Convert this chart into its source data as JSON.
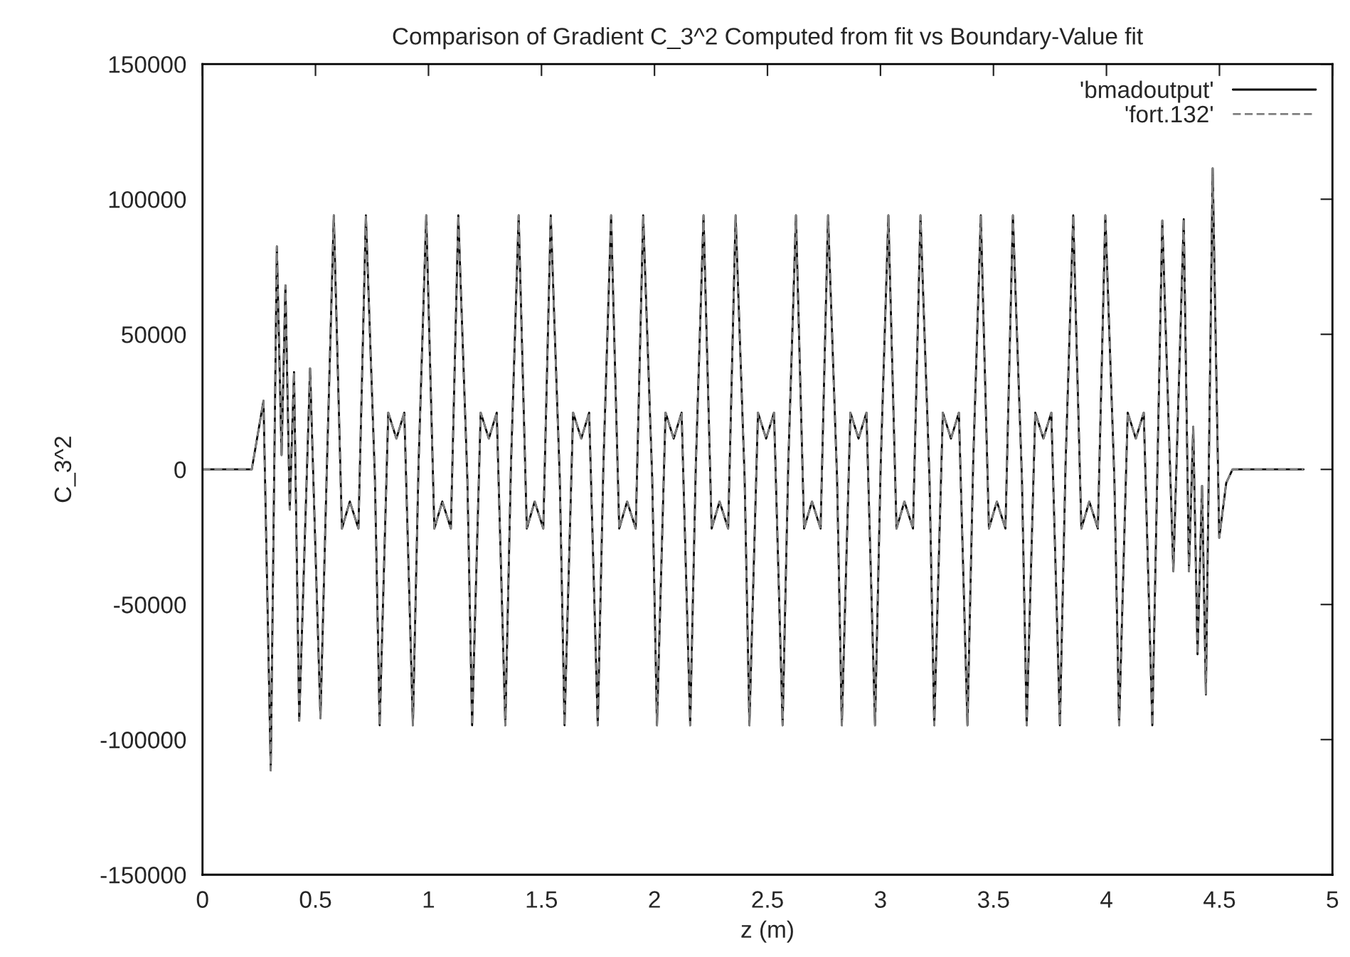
{
  "chart_data": {
    "type": "line",
    "title": "Comparison of Gradient C_3^2 Computed from fit vs Boundary-Value fit",
    "xlabel": "z (m)",
    "ylabel": "C_3^2",
    "x": [
      0,
      0.218,
      0.27,
      0.302,
      0.329,
      0.35,
      0.367,
      0.386,
      0.405,
      0.428,
      0.476,
      0.522,
      0.549,
      0.581,
      0.617,
      0.652,
      0.69,
      0.723,
      0.763,
      0.784,
      0.822,
      0.858,
      0.893,
      0.931,
      0.956,
      0.99,
      1.026,
      1.061,
      1.099,
      1.132,
      1.172,
      1.193,
      1.231,
      1.267,
      1.302,
      1.34,
      1.365,
      1.399,
      1.435,
      1.47,
      1.508,
      1.541,
      1.581,
      1.602,
      1.64,
      1.676,
      1.711,
      1.749,
      1.774,
      1.808,
      1.844,
      1.879,
      1.917,
      1.95,
      1.99,
      2.011,
      2.049,
      2.085,
      2.12,
      2.158,
      2.183,
      2.217,
      2.253,
      2.288,
      2.326,
      2.359,
      2.399,
      2.42,
      2.458,
      2.494,
      2.529,
      2.567,
      2.592,
      2.626,
      2.662,
      2.697,
      2.735,
      2.768,
      2.808,
      2.829,
      2.867,
      2.903,
      2.938,
      2.976,
      3.001,
      3.035,
      3.071,
      3.106,
      3.144,
      3.177,
      3.217,
      3.238,
      3.276,
      3.312,
      3.347,
      3.385,
      3.41,
      3.444,
      3.48,
      3.515,
      3.553,
      3.586,
      3.626,
      3.647,
      3.685,
      3.721,
      3.756,
      3.794,
      3.819,
      3.853,
      3.889,
      3.924,
      3.962,
      3.995,
      4.035,
      4.056,
      4.094,
      4.13,
      4.165,
      4.203,
      4.247,
      4.296,
      4.342,
      4.365,
      4.384,
      4.403,
      4.423,
      4.44,
      4.47,
      4.499,
      4.53,
      4.558,
      4.872
    ],
    "series": [
      {
        "name": "'bmadoutput'",
        "color": "#000000",
        "line_style": "solid",
        "values": [
          0,
          0,
          25400,
          -111400,
          82500,
          5300,
          68100,
          -14900,
          36000,
          -93000,
          37400,
          -92100,
          -3500,
          94000,
          -21900,
          -11900,
          -21900,
          94000,
          -3500,
          -94700,
          21000,
          11400,
          21000,
          -94700,
          1700,
          94000,
          -21900,
          -11900,
          -21900,
          94000,
          -3500,
          -94700,
          21000,
          11400,
          21000,
          -94700,
          1700,
          94000,
          -21900,
          -11900,
          -21900,
          94000,
          -3500,
          -94700,
          21000,
          11400,
          21000,
          -94700,
          1700,
          94000,
          -21900,
          -11900,
          -21900,
          94000,
          -3500,
          -94700,
          21000,
          11400,
          21000,
          -94700,
          1700,
          94000,
          -21900,
          -11900,
          -21900,
          94000,
          -3500,
          -94700,
          21000,
          11400,
          21000,
          -94700,
          1700,
          94000,
          -21900,
          -11900,
          -21900,
          94000,
          -3500,
          -94700,
          21000,
          11400,
          21000,
          -94700,
          1700,
          94000,
          -21900,
          -11900,
          -21900,
          94000,
          -3500,
          -94700,
          21000,
          11400,
          21000,
          -94700,
          1700,
          94000,
          -21900,
          -11900,
          -21900,
          94000,
          -3500,
          -94700,
          21000,
          11400,
          21000,
          -94700,
          1700,
          94000,
          -21900,
          -11900,
          -21900,
          94000,
          -3500,
          -94700,
          21000,
          11400,
          21000,
          -94700,
          92100,
          -37700,
          92600,
          -37700,
          15800,
          -68400,
          -6100,
          -83300,
          111400,
          -25300,
          -5000,
          0,
          0
        ]
      },
      {
        "name": "'fort.132'",
        "color": "#808080",
        "line_style": "dashed",
        "values": [
          0,
          0,
          25400,
          -111400,
          82500,
          5300,
          68100,
          -14900,
          36000,
          -93000,
          37400,
          -92100,
          -3500,
          94000,
          -21900,
          -11900,
          -21900,
          94000,
          -3500,
          -94700,
          21000,
          11400,
          21000,
          -94700,
          1700,
          94000,
          -21900,
          -11900,
          -21900,
          94000,
          -3500,
          -94700,
          21000,
          11400,
          21000,
          -94700,
          1700,
          94000,
          -21900,
          -11900,
          -21900,
          94000,
          -3500,
          -94700,
          21000,
          11400,
          21000,
          -94700,
          1700,
          94000,
          -21900,
          -11900,
          -21900,
          94000,
          -3500,
          -94700,
          21000,
          11400,
          21000,
          -94700,
          1700,
          94000,
          -21900,
          -11900,
          -21900,
          94000,
          -3500,
          -94700,
          21000,
          11400,
          21000,
          -94700,
          1700,
          94000,
          -21900,
          -11900,
          -21900,
          94000,
          -3500,
          -94700,
          21000,
          11400,
          21000,
          -94700,
          1700,
          94000,
          -21900,
          -11900,
          -21900,
          94000,
          -3500,
          -94700,
          21000,
          11400,
          21000,
          -94700,
          1700,
          94000,
          -21900,
          -11900,
          -21900,
          94000,
          -3500,
          -94700,
          21000,
          11400,
          21000,
          -94700,
          1700,
          94000,
          -21900,
          -11900,
          -21900,
          94000,
          -3500,
          -94700,
          21000,
          11400,
          21000,
          -94700,
          92100,
          -37700,
          92600,
          -37700,
          15800,
          -68400,
          -6100,
          -83300,
          111400,
          -25300,
          -5000,
          0,
          0
        ]
      }
    ],
    "xlim": [
      0,
      5
    ],
    "xticks": [
      0,
      0.5,
      1,
      1.5,
      2,
      2.5,
      3,
      3.5,
      4,
      4.5,
      5
    ],
    "ylim": [
      -150000,
      150000
    ],
    "yticks": [
      -150000,
      -100000,
      -50000,
      0,
      50000,
      100000,
      150000
    ],
    "legend": "top right",
    "grid": false,
    "marker": "none"
  }
}
